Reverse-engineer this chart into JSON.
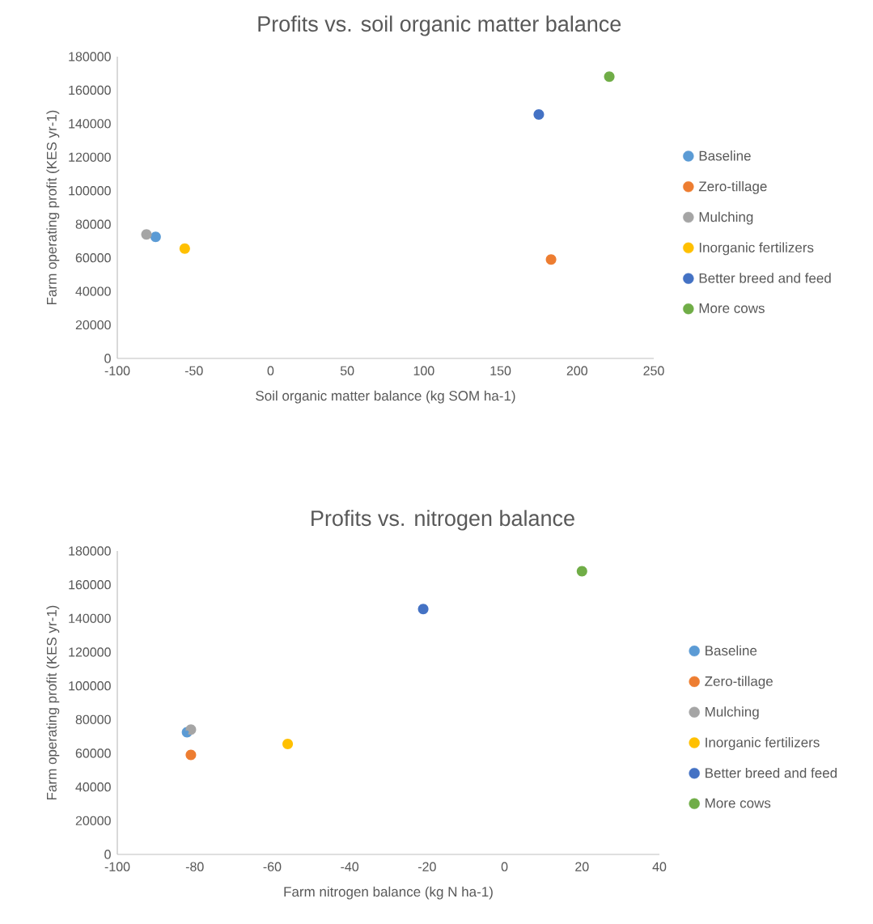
{
  "chart_data": [
    {
      "type": "scatter",
      "title": "Profits vs. soil organic matter balance",
      "xlabel": "Soil organic matter balance (kg SOM ha-1)",
      "ylabel": "Farm operating profit (KES yr-1)",
      "xlim": [
        -100,
        250
      ],
      "ylim": [
        0,
        180000
      ],
      "xticks": [
        -100,
        -50,
        0,
        50,
        100,
        150,
        200,
        250
      ],
      "yticks": [
        0,
        20000,
        40000,
        60000,
        80000,
        100000,
        120000,
        140000,
        160000,
        180000
      ],
      "legend": "right",
      "marker": "circle",
      "series": [
        {
          "name": "Baseline",
          "color": "#5b9bd5",
          "x": [
            -75
          ],
          "values": [
            72500
          ]
        },
        {
          "name": "Zero-tillage",
          "color": "#ed7d31",
          "x": [
            183
          ],
          "values": [
            59000
          ]
        },
        {
          "name": "Mulching",
          "color": "#a5a5a5",
          "x": [
            -81
          ],
          "values": [
            74000
          ]
        },
        {
          "name": "Inorganic fertilizers",
          "color": "#ffc000",
          "x": [
            -56
          ],
          "values": [
            65500
          ]
        },
        {
          "name": "Better breed and feed",
          "color": "#4472c4",
          "x": [
            175
          ],
          "values": [
            145500
          ]
        },
        {
          "name": "More cows",
          "color": "#70ad47",
          "x": [
            221
          ],
          "values": [
            168000
          ]
        }
      ]
    },
    {
      "type": "scatter",
      "title": "Profits vs. nitrogen balance",
      "xlabel": "Farm nitrogen balance (kg N ha-1)",
      "ylabel": "Farm operating profit (KES yr-1)",
      "xlim": [
        -100,
        40
      ],
      "ylim": [
        0,
        180000
      ],
      "xticks": [
        -100,
        -80,
        -60,
        -40,
        -20,
        0,
        20,
        40
      ],
      "yticks": [
        0,
        20000,
        40000,
        60000,
        80000,
        100000,
        120000,
        140000,
        160000,
        180000
      ],
      "legend": "right",
      "marker": "circle",
      "series": [
        {
          "name": "Baseline",
          "color": "#5b9bd5",
          "x": [
            -82
          ],
          "values": [
            72500
          ]
        },
        {
          "name": "Zero-tillage",
          "color": "#ed7d31",
          "x": [
            -81
          ],
          "values": [
            59000
          ]
        },
        {
          "name": "Mulching",
          "color": "#a5a5a5",
          "x": [
            -81
          ],
          "values": [
            74000
          ]
        },
        {
          "name": "Inorganic fertilizers",
          "color": "#ffc000",
          "x": [
            -56
          ],
          "values": [
            65500
          ]
        },
        {
          "name": "Better breed and feed",
          "color": "#4472c4",
          "x": [
            -21
          ],
          "values": [
            145500
          ]
        },
        {
          "name": "More cows",
          "color": "#70ad47",
          "x": [
            20
          ],
          "values": [
            168000
          ]
        }
      ]
    }
  ]
}
